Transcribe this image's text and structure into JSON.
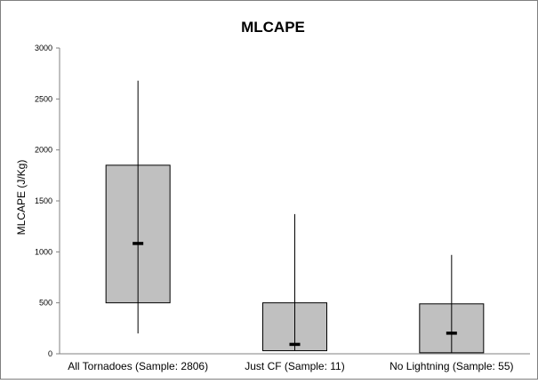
{
  "chart_data": {
    "type": "box",
    "title": "MLCAPE",
    "ylabel": "MLCAPE (J/Kg)",
    "xlabel": "",
    "ylim": [
      0,
      3000
    ],
    "yticks": [
      0,
      500,
      1000,
      1500,
      2000,
      2500,
      3000
    ],
    "grid": false,
    "legend": "none",
    "categories": [
      "All Tornadoes (Sample: 2806)",
      "Just CF (Sample: 11)",
      "No Lightning (Sample: 55)"
    ],
    "boxes": [
      {
        "min": 200,
        "q1": 500,
        "median": 1080,
        "q3": 1850,
        "max": 2680
      },
      {
        "min": 30,
        "q1": 30,
        "median": 90,
        "q3": 500,
        "max": 1370
      },
      {
        "min": 10,
        "q1": 10,
        "median": 200,
        "q3": 490,
        "max": 970
      }
    ],
    "colors": {
      "box_fill": "#c0c0c0",
      "box_stroke": "#000000",
      "whisker": "#000000",
      "median": "#000000",
      "frame": "#808080"
    }
  }
}
